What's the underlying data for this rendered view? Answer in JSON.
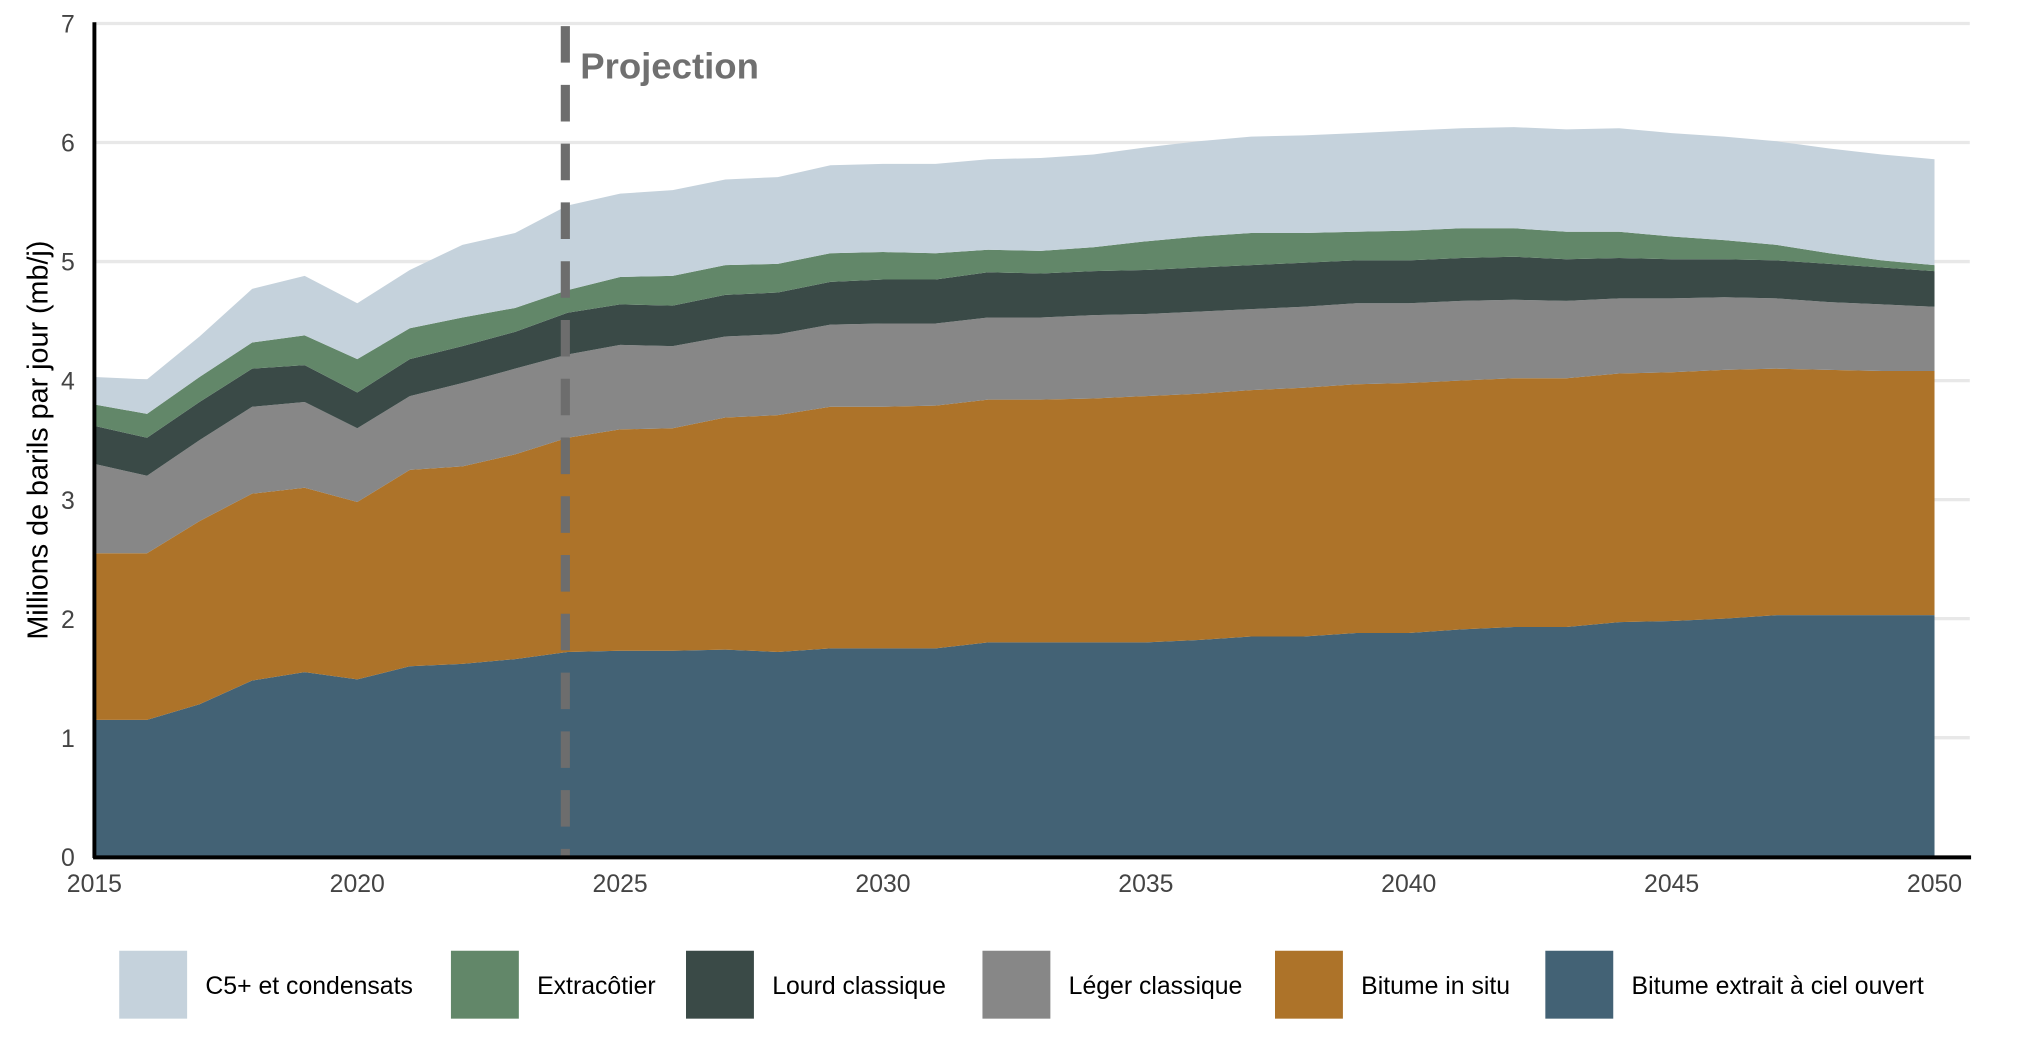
{
  "chart_data": {
    "type": "area",
    "stacked": true,
    "title": "",
    "xlabel": "",
    "ylabel": "Millions de barils par jour (mb/j)",
    "xlim": [
      2015,
      2050
    ],
    "ylim": [
      0,
      7
    ],
    "x_ticks": [
      "2015",
      "2020",
      "2025",
      "2030",
      "2035",
      "2040",
      "2045",
      "2050"
    ],
    "y_ticks": [
      "0",
      "1",
      "2",
      "3",
      "4",
      "5",
      "6",
      "7"
    ],
    "grid": "horizontal",
    "legend_placement": "bottom",
    "annotation": {
      "label": "Projection",
      "x": 2024,
      "style": "dashed-vertical-line",
      "color": "#6d6d6d"
    },
    "x": [
      2015,
      2016,
      2017,
      2018,
      2019,
      2020,
      2021,
      2022,
      2023,
      2024,
      2025,
      2026,
      2027,
      2028,
      2029,
      2030,
      2031,
      2032,
      2033,
      2034,
      2035,
      2036,
      2037,
      2038,
      2039,
      2040,
      2041,
      2042,
      2043,
      2044,
      2045,
      2046,
      2047,
      2048,
      2049,
      2050
    ],
    "series": [
      {
        "name": "Bitume extrait à ciel ouvert",
        "color": "#436275",
        "values": [
          1.15,
          1.15,
          1.28,
          1.48,
          1.55,
          1.49,
          1.6,
          1.62,
          1.66,
          1.72,
          1.73,
          1.73,
          1.74,
          1.72,
          1.75,
          1.75,
          1.75,
          1.8,
          1.8,
          1.8,
          1.8,
          1.82,
          1.85,
          1.85,
          1.88,
          1.88,
          1.91,
          1.93,
          1.93,
          1.97,
          1.98,
          2.0,
          2.03,
          2.03,
          2.03,
          2.03
        ]
      },
      {
        "name": "Bitume in situ",
        "color": "#ad7329",
        "values": [
          1.4,
          1.4,
          1.54,
          1.57,
          1.55,
          1.49,
          1.65,
          1.66,
          1.72,
          1.8,
          1.86,
          1.87,
          1.95,
          1.99,
          2.03,
          2.03,
          2.04,
          2.04,
          2.04,
          2.05,
          2.07,
          2.07,
          2.07,
          2.09,
          2.09,
          2.1,
          2.09,
          2.09,
          2.09,
          2.09,
          2.09,
          2.09,
          2.07,
          2.06,
          2.05,
          2.05
        ]
      },
      {
        "name": "Léger classique",
        "color": "#878787",
        "values": [
          0.75,
          0.65,
          0.68,
          0.73,
          0.72,
          0.62,
          0.62,
          0.7,
          0.72,
          0.7,
          0.71,
          0.69,
          0.68,
          0.68,
          0.69,
          0.7,
          0.69,
          0.69,
          0.69,
          0.7,
          0.69,
          0.69,
          0.68,
          0.68,
          0.68,
          0.67,
          0.67,
          0.66,
          0.65,
          0.63,
          0.62,
          0.61,
          0.59,
          0.57,
          0.56,
          0.54
        ]
      },
      {
        "name": "Lourd classique",
        "color": "#3a4a47",
        "values": [
          0.32,
          0.32,
          0.32,
          0.32,
          0.31,
          0.3,
          0.31,
          0.31,
          0.31,
          0.35,
          0.34,
          0.34,
          0.35,
          0.35,
          0.36,
          0.37,
          0.37,
          0.38,
          0.37,
          0.37,
          0.37,
          0.37,
          0.37,
          0.37,
          0.36,
          0.36,
          0.36,
          0.36,
          0.35,
          0.34,
          0.33,
          0.32,
          0.32,
          0.32,
          0.31,
          0.3
        ]
      },
      {
        "name": "Extracôtier",
        "color": "#628769",
        "values": [
          0.18,
          0.2,
          0.21,
          0.22,
          0.25,
          0.28,
          0.26,
          0.24,
          0.2,
          0.19,
          0.23,
          0.25,
          0.25,
          0.24,
          0.24,
          0.23,
          0.22,
          0.19,
          0.19,
          0.2,
          0.24,
          0.26,
          0.27,
          0.25,
          0.24,
          0.25,
          0.25,
          0.24,
          0.23,
          0.22,
          0.19,
          0.16,
          0.13,
          0.09,
          0.06,
          0.05
        ]
      },
      {
        "name": "C5+ et condensats",
        "color": "#c5d2dc",
        "values": [
          0.23,
          0.29,
          0.34,
          0.45,
          0.5,
          0.47,
          0.49,
          0.61,
          0.63,
          0.71,
          0.7,
          0.72,
          0.72,
          0.73,
          0.74,
          0.74,
          0.75,
          0.76,
          0.78,
          0.78,
          0.79,
          0.8,
          0.81,
          0.82,
          0.83,
          0.84,
          0.84,
          0.85,
          0.86,
          0.87,
          0.87,
          0.87,
          0.87,
          0.88,
          0.89,
          0.89
        ]
      }
    ],
    "legend_order": [
      "C5+ et condensats",
      "Extracôtier",
      "Lourd classique",
      "Léger classique",
      "Bitume in situ",
      "Bitume extrait à ciel ouvert"
    ]
  }
}
